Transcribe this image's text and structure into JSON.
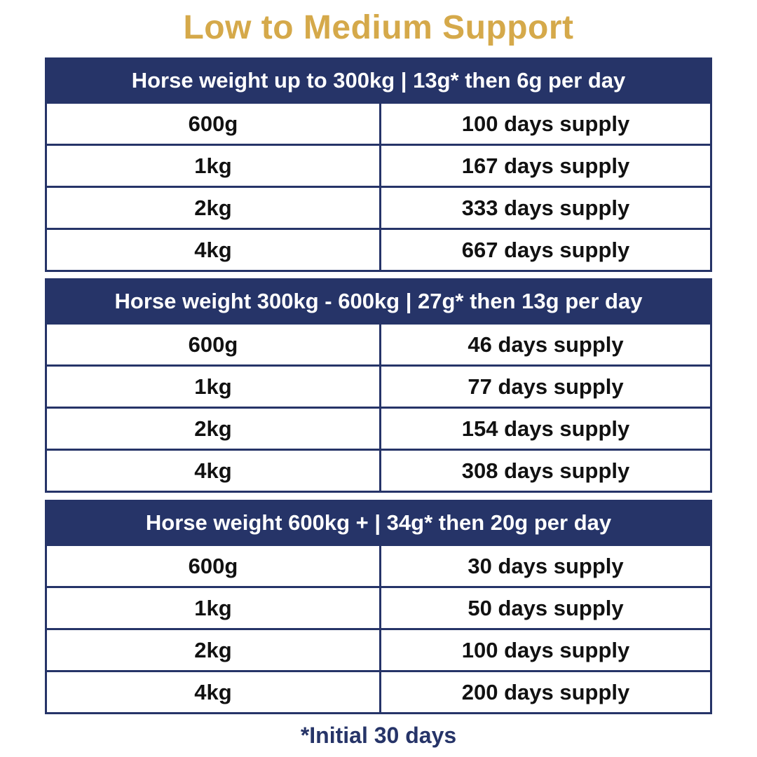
{
  "title": "Low to Medium Support",
  "colors": {
    "title": "#d5a94a",
    "header_bg": "#263468",
    "border": "#263468",
    "footnote": "#263468"
  },
  "tables": [
    {
      "header": "Horse weight up to 300kg | 13g* then 6g per day",
      "rows": [
        {
          "size": "600g",
          "supply": "100 days supply"
        },
        {
          "size": "1kg",
          "supply": "167 days supply"
        },
        {
          "size": "2kg",
          "supply": "333 days supply"
        },
        {
          "size": "4kg",
          "supply": "667 days supply"
        }
      ]
    },
    {
      "header": "Horse weight 300kg - 600kg | 27g* then 13g per day",
      "rows": [
        {
          "size": "600g",
          "supply": "46 days supply"
        },
        {
          "size": "1kg",
          "supply": "77 days supply"
        },
        {
          "size": "2kg",
          "supply": "154 days supply"
        },
        {
          "size": "4kg",
          "supply": "308 days supply"
        }
      ]
    },
    {
      "header": "Horse weight 600kg + | 34g* then 20g per day",
      "rows": [
        {
          "size": "600g",
          "supply": "30 days supply"
        },
        {
          "size": "1kg",
          "supply": "50 days supply"
        },
        {
          "size": "2kg",
          "supply": "100 days supply"
        },
        {
          "size": "4kg",
          "supply": "200 days supply"
        }
      ]
    }
  ],
  "footnote": "*Initial 30 days"
}
